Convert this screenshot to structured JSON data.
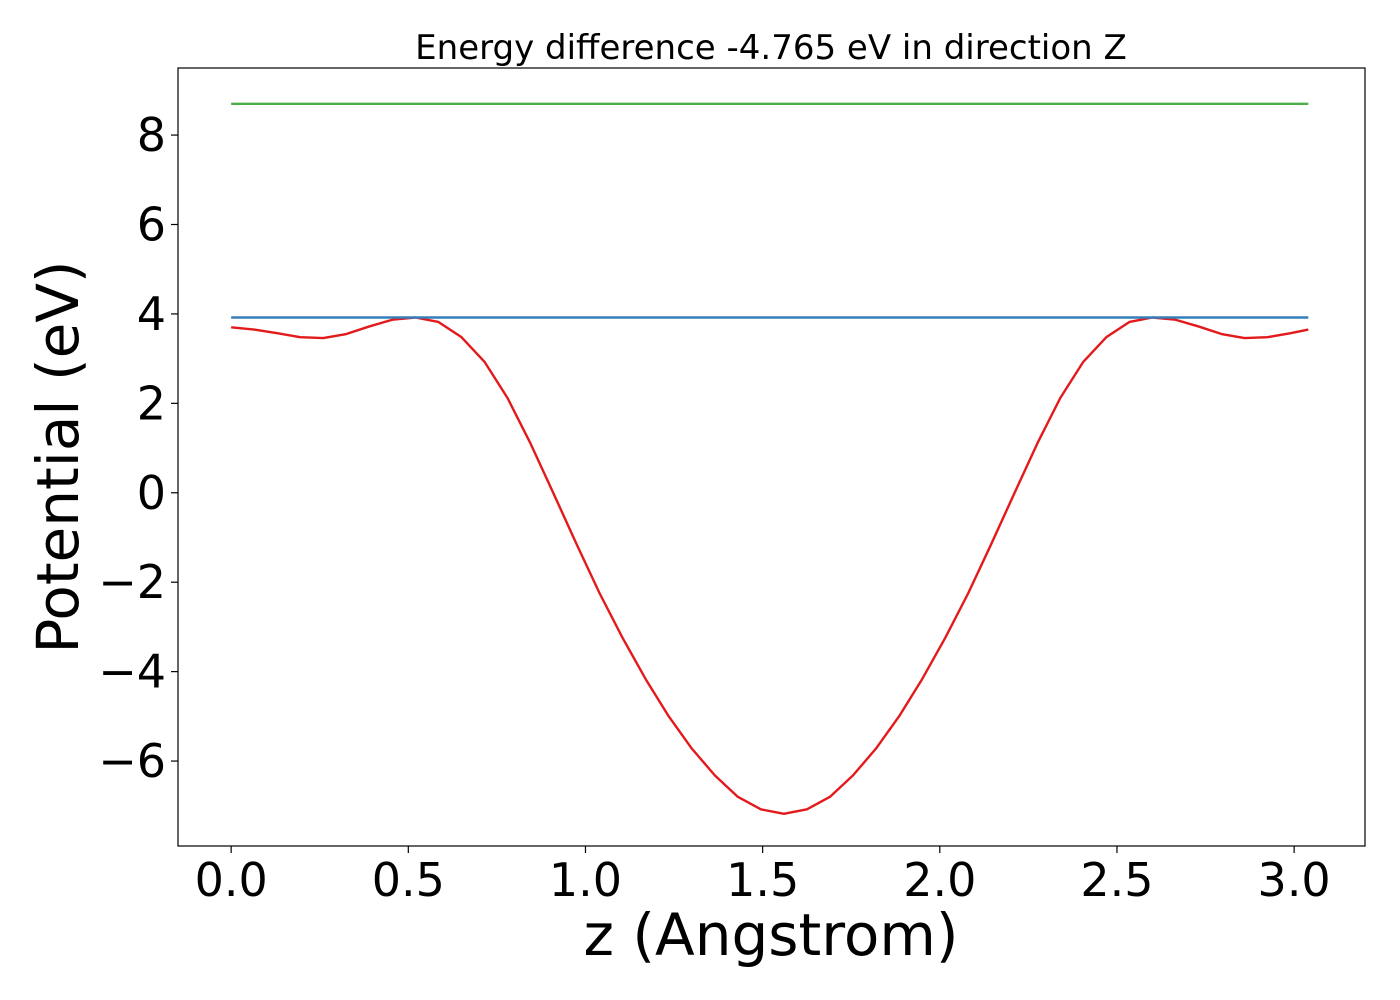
{
  "chart_data": {
    "type": "line",
    "title": "Energy difference -4.765 eV in direction Z",
    "xlabel": "z (Angstrom)",
    "ylabel": "Potential (eV)",
    "xlim": [
      -0.15,
      3.2
    ],
    "ylim": [
      -7.9,
      9.5
    ],
    "x_ticks": [
      0.0,
      0.5,
      1.0,
      1.5,
      2.0,
      2.5,
      3.0
    ],
    "x_tick_labels": [
      "0.0",
      "0.5",
      "1.0",
      "1.5",
      "2.0",
      "2.5",
      "3.0"
    ],
    "y_ticks": [
      -6,
      -4,
      -2,
      0,
      2,
      4,
      6,
      8
    ],
    "y_tick_labels": [
      "−6",
      "−4",
      "−2",
      "0",
      "2",
      "4",
      "6",
      "8"
    ],
    "grid": false,
    "series": [
      {
        "color": "#e31a1c",
        "x": [
          0.0,
          0.065,
          0.13,
          0.195,
          0.26,
          0.325,
          0.39,
          0.455,
          0.52,
          0.585,
          0.65,
          0.715,
          0.78,
          0.845,
          0.91,
          0.975,
          1.04,
          1.105,
          1.17,
          1.235,
          1.3,
          1.365,
          1.43,
          1.495,
          1.56,
          1.625,
          1.69,
          1.755,
          1.82,
          1.885,
          1.95,
          2.015,
          2.08,
          2.145,
          2.21,
          2.275,
          2.34,
          2.405,
          2.47,
          2.535,
          2.6,
          2.665,
          2.73,
          2.795,
          2.86,
          2.925,
          2.99,
          3.04
        ],
        "values": [
          3.7,
          3.65,
          3.57,
          3.48,
          3.46,
          3.55,
          3.72,
          3.87,
          3.92,
          3.82,
          3.48,
          2.93,
          2.12,
          1.1,
          -0.02,
          -1.15,
          -2.25,
          -3.25,
          -4.17,
          -5.0,
          -5.72,
          -6.32,
          -6.8,
          -7.08,
          -7.18,
          -7.08,
          -6.8,
          -6.32,
          -5.72,
          -5.0,
          -4.17,
          -3.25,
          -2.25,
          -1.15,
          -0.02,
          1.1,
          2.12,
          2.93,
          3.48,
          3.82,
          3.92,
          3.87,
          3.72,
          3.55,
          3.46,
          3.48,
          3.57,
          3.65
        ]
      },
      {
        "color": "#377eb8",
        "x": [
          0.0,
          3.04
        ],
        "values": [
          3.92,
          3.92
        ]
      },
      {
        "color": "#4daf4a",
        "x": [
          0.0,
          3.04
        ],
        "values": [
          8.7,
          8.7
        ]
      }
    ]
  }
}
